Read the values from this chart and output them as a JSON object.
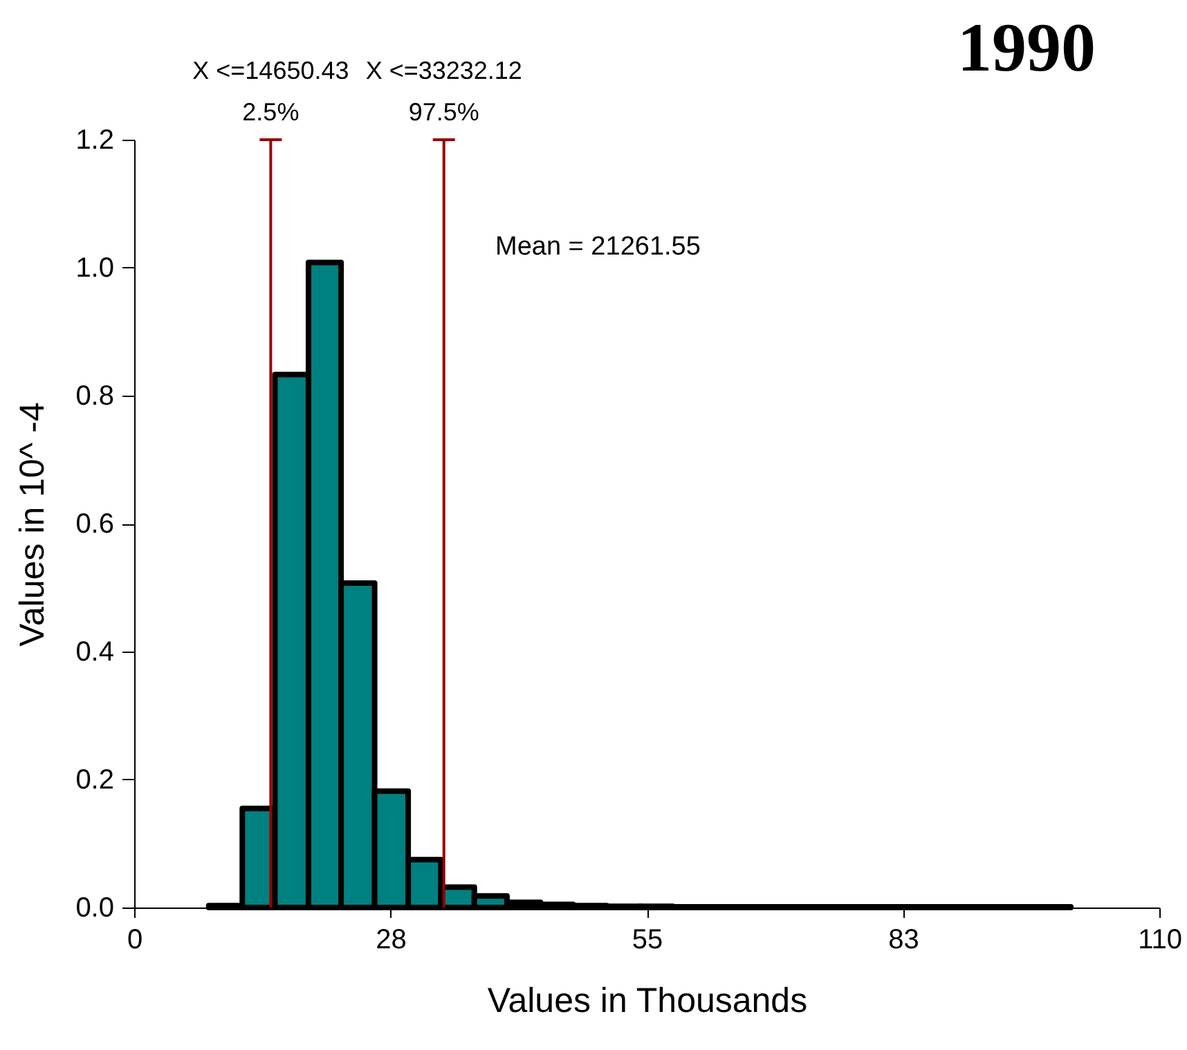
{
  "chart_data": {
    "type": "histogram",
    "title": "1990",
    "xlabel": "Values in Thousands",
    "ylabel": "Values in 10^ -4",
    "bins": [
      8.0,
      11.6,
      15.1,
      18.7,
      22.2,
      25.8,
      29.4,
      32.9,
      36.5,
      40.0,
      43.6,
      47.1,
      50.7,
      54.3,
      57.8,
      61.4,
      64.9,
      68.5,
      72.0,
      75.6,
      79.2,
      82.7,
      86.3,
      89.8,
      93.4,
      96.9,
      100.5
    ],
    "values": [
      0.003,
      0.155,
      0.833,
      1.008,
      0.507,
      0.182,
      0.075,
      0.032,
      0.018,
      0.008,
      0.005,
      0.003,
      0.002,
      0.002,
      0.001,
      0.001,
      0.001,
      0.001,
      0.001,
      0.001,
      0.001,
      0.001,
      0.001,
      0.001,
      0.001,
      0.001
    ],
    "color": "#008080",
    "xlim": [
      0,
      110
    ],
    "xticks": [
      0,
      {
        "value": 27.5,
        "label": "28"
      },
      55,
      {
        "value": 82.5,
        "label": "83"
      },
      110
    ],
    "ylim": [
      0,
      1.2
    ],
    "yticks": [
      {
        "value": 0,
        "label": "0.0"
      },
      {
        "value": 0.2,
        "label": "0.2"
      },
      {
        "value": 0.4,
        "label": "0.4"
      },
      {
        "value": 0.6,
        "label": "0.6"
      },
      {
        "value": 0.8,
        "label": "0.8"
      },
      {
        "value": 1.0,
        "label": "1.0"
      },
      {
        "value": 1.2,
        "label": "1.2"
      }
    ],
    "ref_lines": [
      {
        "axis": "x",
        "value": 14.65043,
        "label": "X <=14650.43\n2.5%",
        "color": "#990000"
      },
      {
        "axis": "x",
        "value": 33.23212,
        "label": "X <=33232.12\n97.5%",
        "color": "#990000"
      }
    ],
    "annotations": [
      "Mean = 21261.55"
    ],
    "grid": false
  }
}
